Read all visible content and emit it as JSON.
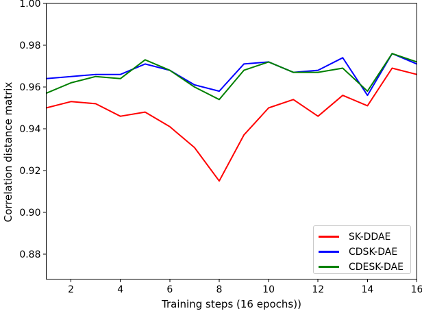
{
  "chart_data": {
    "type": "line",
    "title": "",
    "xlabel": "Training steps (16 epochs))",
    "ylabel": "Correlation distance matrix",
    "x": [
      1,
      2,
      3,
      4,
      5,
      6,
      7,
      8,
      9,
      10,
      11,
      12,
      13,
      14,
      15,
      16
    ],
    "series": [
      {
        "name": "SK-DDAE",
        "color": "#ff0000",
        "values": [
          0.95,
          0.953,
          0.952,
          0.946,
          0.948,
          0.941,
          0.931,
          0.915,
          0.937,
          0.95,
          0.954,
          0.946,
          0.956,
          0.951,
          0.969,
          0.966
        ]
      },
      {
        "name": "CDSK-DAE",
        "color": "#0000ff",
        "values": [
          0.964,
          0.965,
          0.966,
          0.966,
          0.971,
          0.968,
          0.961,
          0.958,
          0.971,
          0.972,
          0.967,
          0.968,
          0.974,
          0.956,
          0.976,
          0.971
        ]
      },
      {
        "name": "CDESK-DAE",
        "color": "#008000",
        "values": [
          0.957,
          0.962,
          0.965,
          0.964,
          0.973,
          0.968,
          0.96,
          0.954,
          0.968,
          0.972,
          0.967,
          0.967,
          0.969,
          0.958,
          0.976,
          0.972
        ]
      }
    ],
    "xlim": [
      1,
      16
    ],
    "ylim": [
      0.868,
      1.0
    ],
    "xticks": {
      "values": [
        2,
        4,
        6,
        8,
        10,
        12,
        14,
        16
      ],
      "labels": [
        "2",
        "4",
        "6",
        "8",
        "10",
        "12",
        "14",
        "16"
      ]
    },
    "yticks": {
      "values": [
        0.88,
        0.9,
        0.92,
        0.94,
        0.96,
        0.98,
        1.0
      ],
      "labels": [
        "0.88",
        "0.90",
        "0.92",
        "0.94",
        "0.96",
        "0.98",
        "1.00"
      ]
    },
    "grid": false,
    "legend_position": "lower right",
    "axis_color": "#000000"
  }
}
